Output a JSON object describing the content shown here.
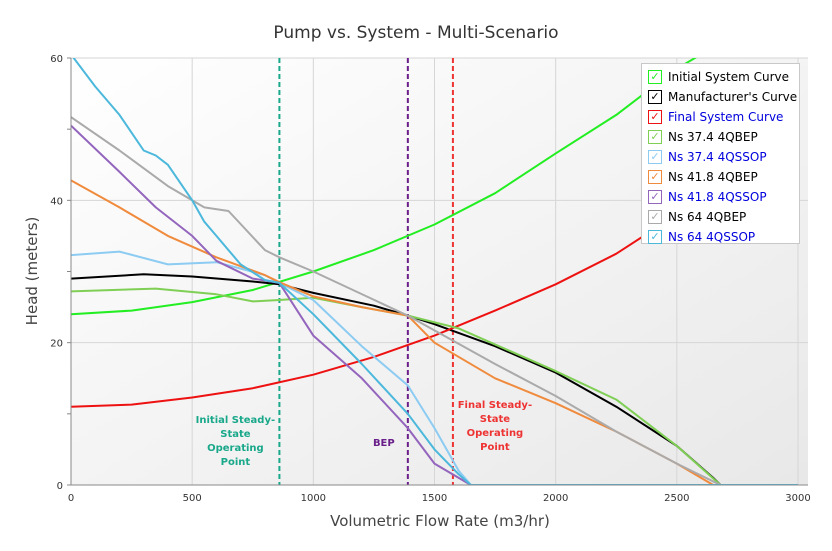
{
  "chart_data": {
    "type": "line",
    "title": "Pump vs. System - Multi-Scenario",
    "xlabel": "Volumetric Flow Rate (m3/hr)",
    "ylabel": "Head (meters)",
    "xlim": [
      0,
      3000
    ],
    "ylim": [
      0,
      60
    ],
    "xticks": [
      0,
      500,
      1000,
      1500,
      2000,
      2500,
      3000
    ],
    "yticks": [
      0,
      20,
      40,
      60
    ],
    "grid": true,
    "legend_position": "top-right",
    "series": [
      {
        "name": "Initial System Curve",
        "color": "#22ee22",
        "text_color": "#000000",
        "x": [
          0,
          250,
          500,
          750,
          1000,
          1250,
          1500,
          1750,
          2000,
          2250,
          2500,
          2600
        ],
        "y": [
          24,
          24.5,
          25.7,
          27.4,
          30,
          33,
          36.6,
          41,
          46.6,
          52,
          58.5,
          60.5
        ]
      },
      {
        "name": "Manufacturer's Curve",
        "color": "#000000",
        "text_color": "#000000",
        "x": [
          0,
          300,
          500,
          750,
          860,
          1000,
          1250,
          1390,
          1500,
          1750,
          2000,
          2250,
          2500,
          2650,
          2680
        ],
        "y": [
          29,
          29.6,
          29.3,
          28.6,
          28.2,
          27,
          25.2,
          23.8,
          22.6,
          19.5,
          15.8,
          11,
          5.5,
          1,
          0
        ]
      },
      {
        "name": "Final System Curve",
        "color": "#ee1111",
        "text_color": "#0000dd",
        "x": [
          0,
          250,
          500,
          750,
          1000,
          1250,
          1500,
          1750,
          2000,
          2250,
          2500,
          2750,
          3000
        ],
        "y": [
          11,
          11.3,
          12.3,
          13.6,
          15.5,
          18,
          21,
          24.5,
          28.2,
          32.5,
          38,
          44,
          52
        ]
      },
      {
        "name": "Ns 37.4 4QBEP",
        "color": "#7fcf55",
        "text_color": "#000000",
        "x": [
          0,
          350,
          600,
          750,
          860,
          1000,
          1200,
          1390,
          1600,
          1800,
          2000,
          2250,
          2500,
          2680
        ],
        "y": [
          27.2,
          27.6,
          26.8,
          25.8,
          26,
          26.3,
          25,
          23.8,
          22,
          19,
          16,
          12,
          5.5,
          0
        ]
      },
      {
        "name": "Ns 37.4 4QSSOP",
        "color": "#8ccbf2",
        "text_color": "#0000dd",
        "x": [
          0,
          200,
          400,
          600,
          800,
          860,
          1000,
          1200,
          1390,
          1500,
          1600,
          1650
        ],
        "y": [
          32.3,
          32.8,
          31,
          31.3,
          29.5,
          28.4,
          26,
          19.5,
          14,
          8,
          2,
          0
        ]
      },
      {
        "name": "Ns 41.8 4QBEP",
        "color": "#f08a3c",
        "text_color": "#000000",
        "x": [
          0,
          200,
          400,
          600,
          800,
          860,
          1000,
          1200,
          1390,
          1500,
          1750,
          2000,
          2250,
          2500,
          2650
        ],
        "y": [
          42.8,
          39,
          35,
          32,
          29.5,
          28.5,
          26.5,
          25,
          23.8,
          20,
          15,
          11.5,
          7.5,
          3,
          0
        ]
      },
      {
        "name": "Ns 41.8 4QSSOP",
        "color": "#9365bd",
        "text_color": "#0000dd",
        "x": [
          0,
          200,
          350,
          500,
          600,
          750,
          860,
          1000,
          1200,
          1390,
          1500,
          1600,
          1650
        ],
        "y": [
          50.5,
          44,
          39,
          35,
          31.5,
          29,
          28.4,
          21,
          15,
          8,
          3,
          1,
          0
        ]
      },
      {
        "name": "Ns 64 4QBEP",
        "color": "#aaaaaa",
        "text_color": "#000000",
        "x": [
          0,
          200,
          400,
          550,
          650,
          800,
          860,
          1000,
          1390,
          1750,
          2000,
          2250,
          2500,
          2680
        ],
        "y": [
          51.7,
          47,
          42,
          39,
          38.5,
          33,
          32,
          30,
          23.8,
          17,
          12.5,
          7.5,
          3,
          0
        ]
      },
      {
        "name": "Ns 64 4QSSOP",
        "color": "#4bb8dc",
        "text_color": "#0000dd",
        "x": [
          0,
          100,
          200,
          300,
          350,
          400,
          500,
          550,
          600,
          700,
          800,
          860,
          1000,
          1200,
          1390,
          1500,
          1600,
          1650,
          3000
        ],
        "y": [
          60.5,
          56,
          52,
          47,
          46.3,
          45,
          40,
          37,
          35,
          31,
          28.8,
          28.4,
          24,
          17,
          10,
          5,
          1.5,
          0,
          0
        ]
      }
    ],
    "markers": [
      {
        "x": 860,
        "label": "Initial Steady-State Operating Point",
        "color": "#19a88a"
      },
      {
        "x": 1390,
        "label": "BEP",
        "color": "#6a1f8a"
      },
      {
        "x": 1576,
        "label": "Final Steady-State Operating Point",
        "color": "#ee3333"
      }
    ]
  }
}
